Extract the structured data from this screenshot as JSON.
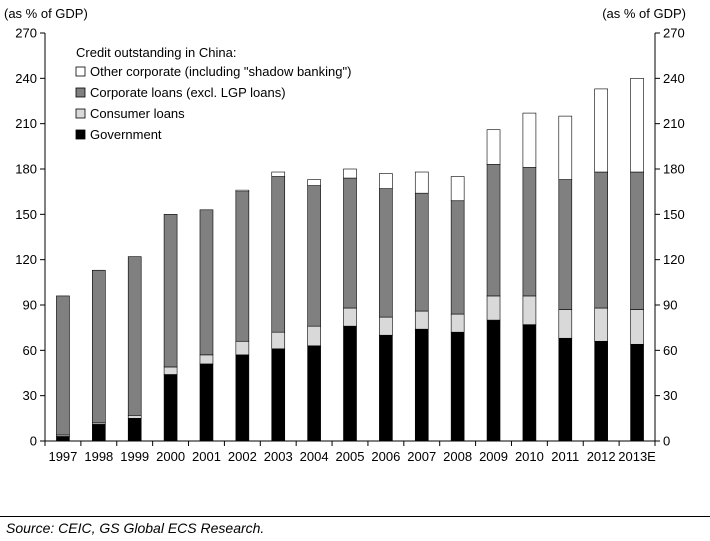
{
  "chart_data": {
    "type": "bar",
    "stacked": true,
    "title": "",
    "y_unit_left": "(as % of GDP)",
    "y_unit_right": "(as % of GDP)",
    "legend_title": "Credit outstanding in China:",
    "legend_position": "top-left",
    "ylim": [
      0,
      270
    ],
    "yticks": [
      0,
      30,
      60,
      90,
      120,
      150,
      180,
      210,
      240,
      270
    ],
    "grid": false,
    "categories": [
      "1997",
      "1998",
      "1999",
      "2000",
      "2001",
      "2002",
      "2003",
      "2004",
      "2005",
      "2006",
      "2007",
      "2008",
      "2009",
      "2010",
      "2011",
      "2012",
      "2013E"
    ],
    "series": [
      {
        "name": "Government",
        "color": "#000000",
        "values": [
          3,
          11,
          15,
          44,
          51,
          57,
          61,
          63,
          76,
          70,
          74,
          72,
          80,
          77,
          68,
          66,
          64
        ]
      },
      {
        "name": "Consumer loans",
        "color": "#d9d9d9",
        "values": [
          1,
          1,
          2,
          5,
          6,
          9,
          11,
          13,
          12,
          12,
          12,
          12,
          16,
          19,
          19,
          22,
          23
        ]
      },
      {
        "name": "Corporate loans (excl. LGP loans)",
        "color": "#808080",
        "values": [
          92,
          101,
          105,
          101,
          96,
          99,
          103,
          93,
          86,
          85,
          78,
          75,
          87,
          85,
          86,
          90,
          91
        ]
      },
      {
        "name": "Other corporate (including \"shadow banking\")",
        "color": "#ffffff",
        "values": [
          0,
          0,
          0,
          0,
          0,
          1,
          3,
          4,
          6,
          10,
          14,
          16,
          23,
          36,
          42,
          55,
          62
        ]
      }
    ],
    "legend_order": [
      "Other corporate (including \"shadow banking\")",
      "Corporate loans (excl. LGP loans)",
      "Consumer loans",
      "Government"
    ]
  },
  "source": "Source: CEIC, GS Global ECS Research."
}
